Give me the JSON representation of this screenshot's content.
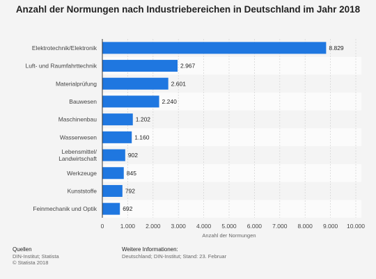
{
  "chart_data": {
    "type": "bar",
    "orientation": "horizontal",
    "title": "Anzahl der Normungen nach Industriebereichen in Deutschland im Jahr 2018",
    "xlabel": "Anzahl der Normungen",
    "ylabel": "",
    "xlim": [
      0,
      10000
    ],
    "xticks": [
      0,
      1000,
      2000,
      3000,
      4000,
      5000,
      6000,
      7000,
      8000,
      9000,
      10000
    ],
    "xtick_labels": [
      "0",
      "1.000",
      "2.000",
      "3.000",
      "4.000",
      "5.000",
      "6.000",
      "7.000",
      "8.000",
      "9.000",
      "10.000"
    ],
    "categories": [
      "Elektrotechnik/Elektronik",
      "Luft- und Raumfahrttechnik",
      "Materialprüfung",
      "Bauwesen",
      "Maschinenbau",
      "Wasserwesen",
      "Lebensmittel/ Landwirtschaft",
      "Werkzeuge",
      "Kunststoffe",
      "Feinmechanik und Optik"
    ],
    "values": [
      8829,
      2967,
      2601,
      2240,
      1202,
      1160,
      902,
      845,
      792,
      692
    ],
    "value_labels": [
      "8.829",
      "2.967",
      "2.601",
      "2.240",
      "1.202",
      "1.160",
      "902",
      "845",
      "792",
      "692"
    ],
    "bar_color": "#1f77e0",
    "grid": true
  },
  "footer": {
    "sources_heading": "Quellen",
    "sources_line1": "DIN-Institut; Statista",
    "sources_line2": "© Statista 2018",
    "info_heading": "Weitere Informationen:",
    "info_line": "Deutschland; DIN-Institut; Stand: 23. Februar"
  }
}
